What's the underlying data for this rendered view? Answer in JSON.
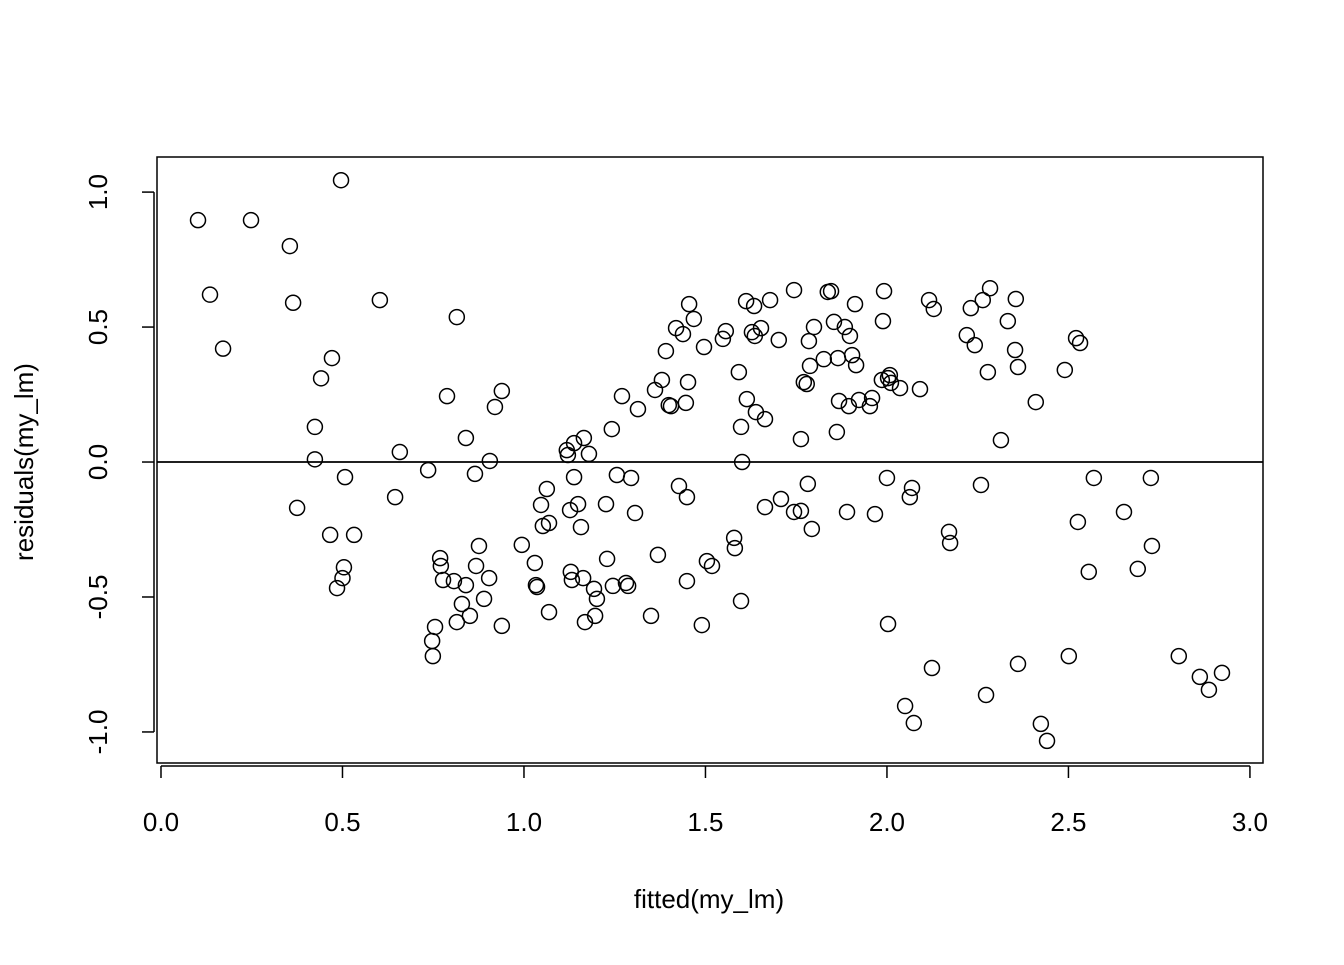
{
  "chart_data": {
    "type": "scatter",
    "x_label": "fitted(my_lm)",
    "y_label": "residuals(my_lm)",
    "xlim": [
      -0.011,
      3.036
    ],
    "ylim": [
      -1.115,
      1.13
    ],
    "xticks": [
      {
        "value": 0,
        "label": "0.0"
      },
      0.5,
      {
        "value": 1,
        "label": "1.0"
      },
      1.5,
      {
        "value": 2,
        "label": "2.0"
      },
      2.5,
      {
        "value": 3,
        "label": "3.0"
      }
    ],
    "yticks": [
      {
        "value": -1,
        "label": "-1.0"
      },
      -0.5,
      {
        "value": 0,
        "label": "0.0"
      },
      0.5,
      {
        "value": 1,
        "label": "1.0"
      }
    ],
    "hline": 0,
    "color": "#000000",
    "x": [
      0.102,
      0.135,
      0.171,
      0.248,
      0.355,
      0.364,
      0.375,
      0.424,
      0.441,
      0.424,
      0.471,
      0.466,
      0.496,
      0.485,
      0.504,
      0.5,
      0.507,
      0.532,
      0.603,
      0.645,
      0.658,
      0.736,
      0.747,
      0.749,
      0.755,
      0.769,
      0.771,
      0.777,
      0.788,
      0.807,
      0.815,
      0.815,
      0.829,
      0.84,
      0.84,
      0.851,
      0.865,
      0.868,
      0.876,
      0.89,
      0.906,
      0.904,
      0.92,
      0.939,
      0.939,
      0.994,
      1.03,
      1.033,
      1.036,
      1.047,
      1.052,
      1.063,
      1.069,
      1.069,
      1.118,
      1.121,
      1.127,
      1.129,
      1.132,
      1.138,
      1.138,
      1.149,
      1.157,
      1.163,
      1.165,
      1.168,
      1.179,
      1.193,
      1.196,
      1.201,
      1.226,
      1.229,
      1.242,
      1.245,
      1.256,
      1.27,
      1.281,
      1.287,
      1.295,
      1.306,
      1.314,
      1.35,
      1.361,
      1.369,
      1.38,
      1.391,
      1.399,
      1.405,
      1.419,
      1.427,
      1.438,
      1.446,
      1.449,
      1.449,
      1.452,
      1.455,
      1.468,
      1.49,
      1.496,
      1.504,
      1.518,
      1.548,
      1.556,
      1.579,
      1.581,
      1.592,
      1.598,
      1.601,
      1.598,
      1.612,
      1.614,
      1.628,
      1.634,
      1.636,
      1.639,
      1.653,
      1.664,
      1.664,
      1.678,
      1.702,
      1.708,
      1.744,
      1.744,
      1.763,
      1.763,
      1.771,
      1.779,
      1.782,
      1.785,
      1.788,
      1.793,
      1.799,
      1.826,
      1.837,
      1.846,
      1.854,
      1.862,
      1.868,
      1.865,
      1.89,
      1.884,
      1.898,
      1.895,
      1.904,
      1.912,
      1.915,
      1.923,
      1.953,
      1.959,
      1.967,
      1.986,
      1.989,
      1.992,
      2.0,
      2.003,
      2.003,
      2.011,
      2.008,
      2.036,
      2.05,
      2.063,
      2.069,
      2.074,
      2.091,
      2.116,
      2.124,
      2.129,
      2.171,
      2.174,
      2.22,
      2.231,
      2.242,
      2.259,
      2.264,
      2.273,
      2.278,
      2.284,
      2.314,
      2.333,
      2.353,
      2.355,
      2.361,
      2.361,
      2.41,
      2.424,
      2.441,
      2.49,
      2.501,
      2.521,
      2.526,
      2.532,
      2.556,
      2.57,
      2.653,
      2.691,
      2.727,
      2.73,
      2.804,
      2.862,
      2.887,
      2.923
    ],
    "values": [
      0.896,
      0.62,
      0.42,
      0.896,
      0.8,
      0.59,
      -0.17,
      0.13,
      0.31,
      0.01,
      0.385,
      -0.27,
      1.044,
      -0.467,
      -0.39,
      -0.43,
      -0.056,
      -0.27,
      0.6,
      -0.13,
      0.037,
      -0.03,
      -0.663,
      -0.719,
      -0.611,
      -0.356,
      -0.385,
      -0.437,
      0.244,
      -0.441,
      0.537,
      -0.593,
      -0.526,
      0.089,
      -0.456,
      -0.57,
      -0.044,
      -0.385,
      -0.311,
      -0.507,
      0.004,
      -0.43,
      0.204,
      0.263,
      -0.607,
      -0.307,
      -0.374,
      -0.456,
      -0.463,
      -0.159,
      -0.237,
      -0.1,
      -0.226,
      -0.556,
      0.044,
      0.026,
      -0.178,
      -0.407,
      -0.437,
      0.07,
      -0.056,
      -0.156,
      -0.241,
      -0.43,
      0.089,
      -0.593,
      0.03,
      -0.47,
      -0.57,
      -0.507,
      -0.156,
      -0.359,
      0.122,
      -0.459,
      -0.048,
      0.244,
      -0.448,
      -0.459,
      -0.059,
      -0.189,
      0.196,
      -0.57,
      0.267,
      -0.344,
      0.304,
      0.411,
      0.211,
      0.207,
      0.496,
      -0.089,
      0.474,
      0.219,
      -0.13,
      -0.441,
      0.296,
      0.585,
      0.53,
      -0.604,
      0.426,
      -0.367,
      -0.385,
      0.456,
      0.485,
      -0.281,
      -0.319,
      0.333,
      0.13,
      0.0,
      -0.515,
      0.596,
      0.233,
      0.481,
      0.578,
      0.467,
      0.185,
      0.496,
      0.159,
      -0.167,
      0.6,
      0.452,
      -0.137,
      0.637,
      -0.185,
      0.085,
      -0.181,
      0.296,
      0.289,
      -0.081,
      0.448,
      0.356,
      -0.248,
      0.5,
      0.381,
      0.63,
      0.633,
      0.519,
      0.111,
      0.226,
      0.385,
      -0.185,
      0.5,
      0.467,
      0.207,
      0.396,
      0.585,
      0.359,
      0.23,
      0.207,
      0.237,
      -0.193,
      0.304,
      0.522,
      0.633,
      -0.059,
      -0.6,
      0.311,
      0.293,
      0.322,
      0.274,
      -0.904,
      -0.13,
      -0.096,
      -0.967,
      0.27,
      0.6,
      -0.763,
      0.567,
      -0.259,
      -0.3,
      0.47,
      0.57,
      0.433,
      -0.085,
      0.6,
      -0.863,
      0.333,
      0.644,
      0.081,
      0.522,
      0.415,
      0.604,
      0.352,
      -0.748,
      0.222,
      -0.97,
      -1.033,
      0.341,
      -0.719,
      0.459,
      -0.222,
      0.441,
      -0.407,
      -0.059,
      -0.185,
      -0.396,
      -0.059,
      -0.311,
      -0.719,
      -0.796,
      -0.844,
      -0.781
    ]
  }
}
